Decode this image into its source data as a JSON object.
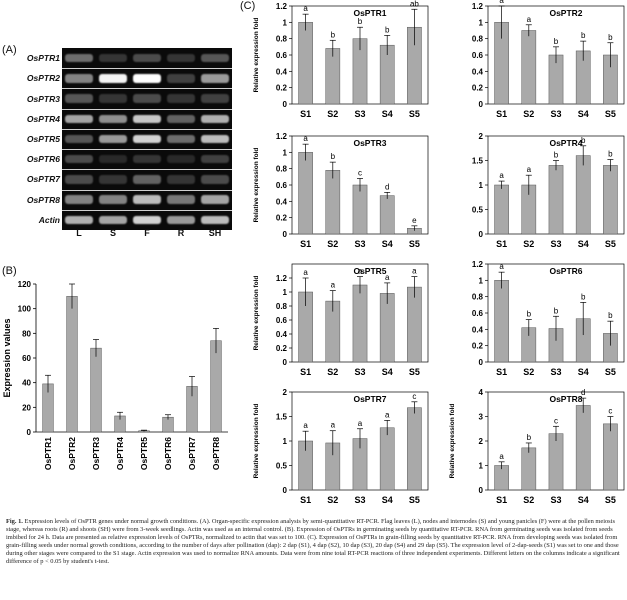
{
  "panels": {
    "a": "(A)",
    "b": "(B)",
    "c": "(C)"
  },
  "gel": {
    "genes": [
      "OsPTR1",
      "OsPTR2",
      "OsPTR3",
      "OsPTR4",
      "OsPTR5",
      "OsPTR6",
      "OsPTR7",
      "OsPTR8",
      "Actin"
    ],
    "lanes": [
      "L",
      "S",
      "F",
      "R",
      "SH"
    ],
    "intensity": [
      [
        0.35,
        0.1,
        0.2,
        0.1,
        0.25
      ],
      [
        0.45,
        0.95,
        1.0,
        0.15,
        0.55
      ],
      [
        0.25,
        0.1,
        0.2,
        0.1,
        0.15
      ],
      [
        0.6,
        0.5,
        0.75,
        0.3,
        0.65
      ],
      [
        0.25,
        0.55,
        0.8,
        0.35,
        0.7
      ],
      [
        0.2,
        0.05,
        0.1,
        0.05,
        0.15
      ],
      [
        0.2,
        0.1,
        0.3,
        0.1,
        0.2
      ],
      [
        0.45,
        0.45,
        0.7,
        0.4,
        0.6
      ],
      [
        0.65,
        0.6,
        0.8,
        0.55,
        0.7
      ]
    ]
  },
  "chart_data": [
    {
      "type": "bar",
      "panel": "B",
      "title": "",
      "ylabel": "Expression values",
      "categories": [
        "OsPTR1",
        "OsPTR2",
        "OsPTR3",
        "OsPTR4",
        "OsPTR5",
        "OsPTR6",
        "OsPTR7",
        "OsPTR8"
      ],
      "values": [
        39,
        110,
        68,
        13,
        1,
        12,
        37,
        74
      ],
      "errors": [
        7,
        10,
        7,
        3,
        0.5,
        2,
        8,
        10
      ],
      "ylim": [
        0,
        120
      ],
      "yticks": [
        0,
        20,
        40,
        60,
        80,
        100,
        120
      ]
    },
    {
      "type": "bar",
      "panel": "C",
      "title": "OsPTR1",
      "ylabel": "Relative expression fold",
      "categories": [
        "S1",
        "S2",
        "S3",
        "S4",
        "S5"
      ],
      "values": [
        1.0,
        0.68,
        0.8,
        0.72,
        0.94
      ],
      "errors": [
        0.1,
        0.1,
        0.14,
        0.12,
        0.22
      ],
      "letters": [
        "a",
        "b",
        "b",
        "b",
        "ab"
      ],
      "ylim": [
        0,
        1.2
      ],
      "yticks": [
        0,
        0.2,
        0.4,
        0.6,
        0.8,
        1,
        1.2
      ]
    },
    {
      "type": "bar",
      "panel": "C",
      "title": "OsPTR2",
      "ylabel": "",
      "categories": [
        "S1",
        "S2",
        "S3",
        "S4",
        "S5"
      ],
      "values": [
        1.0,
        0.9,
        0.6,
        0.65,
        0.6
      ],
      "errors": [
        0.2,
        0.07,
        0.1,
        0.12,
        0.15
      ],
      "letters": [
        "a",
        "a",
        "b",
        "b",
        "b"
      ],
      "ylim": [
        0,
        1.2
      ],
      "yticks": [
        0,
        0.2,
        0.4,
        0.6,
        0.8,
        1,
        1.2
      ]
    },
    {
      "type": "bar",
      "panel": "C",
      "title": "OsPTR3",
      "ylabel": "Relative expression fold",
      "categories": [
        "S1",
        "S2",
        "S3",
        "S4",
        "S5"
      ],
      "values": [
        1.0,
        0.78,
        0.6,
        0.47,
        0.07
      ],
      "errors": [
        0.1,
        0.1,
        0.08,
        0.04,
        0.03
      ],
      "letters": [
        "a",
        "b",
        "c",
        "d",
        "e"
      ],
      "ylim": [
        0,
        1.2
      ],
      "yticks": [
        0,
        0.2,
        0.4,
        0.6,
        0.8,
        1,
        1.2
      ]
    },
    {
      "type": "bar",
      "panel": "C",
      "title": "OsPTR4",
      "ylabel": "",
      "categories": [
        "S1",
        "S2",
        "S3",
        "S4",
        "S5"
      ],
      "values": [
        1.0,
        1.0,
        1.4,
        1.6,
        1.4
      ],
      "errors": [
        0.08,
        0.2,
        0.1,
        0.2,
        0.12
      ],
      "letters": [
        "a",
        "a",
        "b",
        "b",
        "b"
      ],
      "ylim": [
        0,
        2
      ],
      "yticks": [
        0,
        0.5,
        1,
        1.5,
        2
      ]
    },
    {
      "type": "bar",
      "panel": "C",
      "title": "OsPTR5",
      "ylabel": "Relative expression fold",
      "categories": [
        "S1",
        "S2",
        "S3",
        "S4",
        "S5"
      ],
      "values": [
        1.0,
        0.87,
        1.1,
        0.98,
        1.07
      ],
      "errors": [
        0.2,
        0.15,
        0.12,
        0.15,
        0.15
      ],
      "letters": [
        "a",
        "a",
        "a",
        "a",
        "a"
      ],
      "ylim": [
        0,
        1.4
      ],
      "yticks": [
        0,
        0.2,
        0.4,
        0.6,
        0.8,
        1,
        1.2
      ]
    },
    {
      "type": "bar",
      "panel": "C",
      "title": "OsPTR6",
      "ylabel": "",
      "categories": [
        "S1",
        "S2",
        "S3",
        "S4",
        "S5"
      ],
      "values": [
        1.0,
        0.42,
        0.41,
        0.53,
        0.35
      ],
      "errors": [
        0.1,
        0.1,
        0.15,
        0.2,
        0.15
      ],
      "letters": [
        "a",
        "b",
        "b",
        "b",
        "b"
      ],
      "ylim": [
        0,
        1.2
      ],
      "yticks": [
        0,
        0.2,
        0.4,
        0.6,
        0.8,
        1,
        1.2
      ]
    },
    {
      "type": "bar",
      "panel": "C",
      "title": "OsPTR7",
      "ylabel": "Relative expression fold",
      "categories": [
        "S1",
        "S2",
        "S3",
        "S4",
        "S5"
      ],
      "values": [
        1.0,
        0.96,
        1.05,
        1.27,
        1.68
      ],
      "errors": [
        0.2,
        0.25,
        0.2,
        0.15,
        0.12
      ],
      "letters": [
        "a",
        "a",
        "a",
        "a",
        "c"
      ],
      "ylim": [
        0,
        2
      ],
      "yticks": [
        0,
        0.5,
        1,
        1.5,
        2
      ]
    },
    {
      "type": "bar",
      "panel": "C",
      "title": "OsPTR8",
      "ylabel": "Relative expression fold",
      "categories": [
        "S1",
        "S2",
        "S3",
        "S4",
        "S5"
      ],
      "values": [
        1.0,
        1.72,
        2.3,
        3.45,
        2.7
      ],
      "errors": [
        0.15,
        0.2,
        0.3,
        0.3,
        0.3
      ],
      "letters": [
        "a",
        "b",
        "c",
        "d",
        "c"
      ],
      "ylim": [
        0,
        4
      ],
      "yticks": [
        0,
        1,
        2,
        3,
        4
      ]
    }
  ],
  "caption": {
    "label": "Fig. 1.",
    "text": "Expression levels of OsPTR genes under normal growth conditions. (A). Organ-specific expression analysis by semi-quantitative RT-PCR. Flag leaves (L), nodes and internodes (S) and young panicles (F) were at the pollen meiosis stage, whereas roots (R) and shoots (SH) were from 3-week seedlings. Actin was used as an internal control. (B). Expression of OsPTRs in germinating seeds by quantitative RT-PCR. RNA from germinating seeds was isolated from seeds imbibed for 24 h. Data are presented as relative expression levels of OsPTRs, normalized to actin that was set to 100. (C). Expression of OsPTRs in grain-filling seeds by quantitative RT-PCR. RNA from developing seeds was isolated from grain-filling seeds under normal growth conditions, according to the number of days after pollination (dap): 2 dap (S1), 4 dap (S2), 10 dap (S3), 20 dap (S4) and 29 dap (S5). The expression level of 2-dap-seeds (S1) was set to one and those during other stages were compared to the S1 stage. Actin expression was used to normalize RNA amounts. Data were from nine total RT-PCR reactions of three independent experiments. Different letters on the columns indicate a significant difference of p < 0.05 by student's t-test."
  }
}
